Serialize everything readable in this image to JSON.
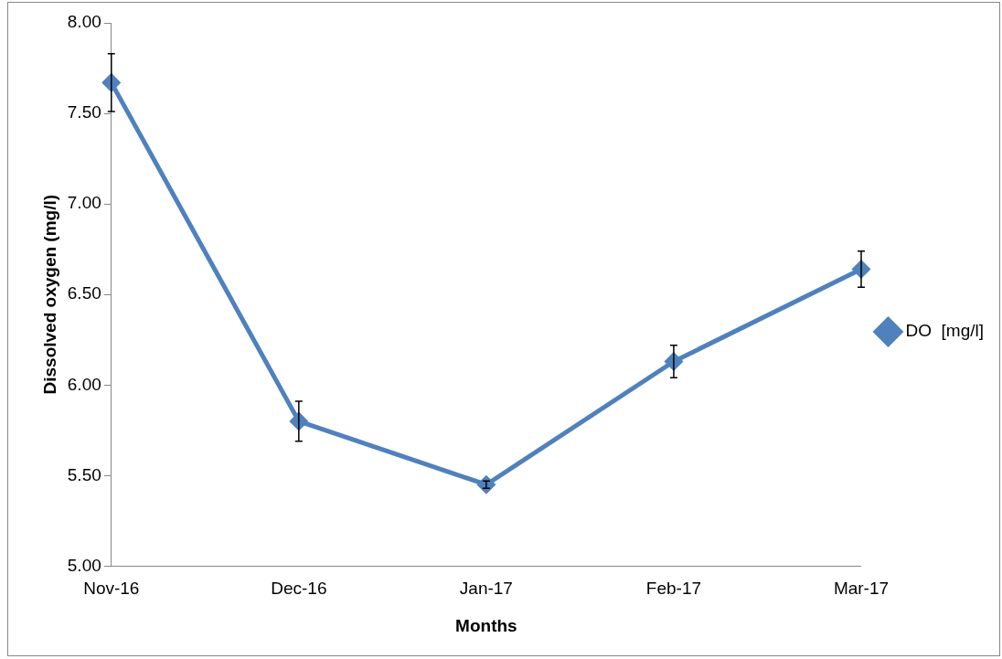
{
  "chart_data": {
    "type": "line",
    "xlabel": "Months",
    "ylabel": "Dissolved oxygen (mg/l)",
    "categories": [
      "Nov-16",
      "Dec-16",
      "Jan-17",
      "Feb-17",
      "Mar-17"
    ],
    "series": [
      {
        "name": "DO  [mg/l]",
        "color": "#4f81bd",
        "values": [
          7.67,
          5.8,
          5.45,
          6.13,
          6.64
        ],
        "errors": [
          0.16,
          0.11,
          0.02,
          0.09,
          0.1
        ]
      }
    ],
    "ylim": [
      5,
      8
    ],
    "yticks": [
      {
        "value": 5,
        "label": "5.00"
      },
      {
        "value": 5.5,
        "label": "5.50"
      },
      {
        "value": 6,
        "label": "6.00"
      },
      {
        "value": 6.5,
        "label": "6.50"
      },
      {
        "value": 7,
        "label": "7.00"
      },
      {
        "value": 7.5,
        "label": "7.50"
      },
      {
        "value": 8,
        "label": "8.00"
      }
    ],
    "grid": false,
    "legend": "right",
    "marker": "diamond",
    "line_style": "solid"
  }
}
